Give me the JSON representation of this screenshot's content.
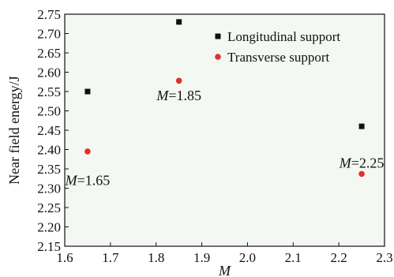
{
  "chart_data": {
    "type": "scatter",
    "xlabel": "M",
    "ylabel": "Near field energy/J",
    "xlim": [
      1.6,
      2.3
    ],
    "ylim": [
      2.15,
      2.75
    ],
    "xticks": [
      "1.6",
      "1.7",
      "1.8",
      "1.9",
      "2.0",
      "2.1",
      "2.2",
      "2.3"
    ],
    "yticks": [
      "2.15",
      "2.20",
      "2.25",
      "2.30",
      "2.35",
      "2.40",
      "2.45",
      "2.50",
      "2.55",
      "2.60",
      "2.65",
      "2.70",
      "2.75"
    ],
    "grid": false,
    "legend_position": "top-right",
    "series": [
      {
        "name": "Longitudinal support",
        "marker": "square",
        "color": "#111111",
        "x": [
          1.65,
          1.85,
          2.25
        ],
        "y": [
          2.55,
          2.73,
          2.46
        ]
      },
      {
        "name": "Transverse support",
        "marker": "circle",
        "color": "#e0312b",
        "x": [
          1.65,
          1.85,
          2.25
        ],
        "y": [
          2.395,
          2.578,
          2.337
        ]
      }
    ],
    "annotations": [
      {
        "prefix": "M",
        "value": "=1.65",
        "x": 1.65,
        "y": 2.32
      },
      {
        "prefix": "M",
        "value": "=1.85",
        "x": 1.85,
        "y": 2.54
      },
      {
        "prefix": "M",
        "value": "=2.25",
        "x": 2.25,
        "y": 2.365
      }
    ]
  }
}
